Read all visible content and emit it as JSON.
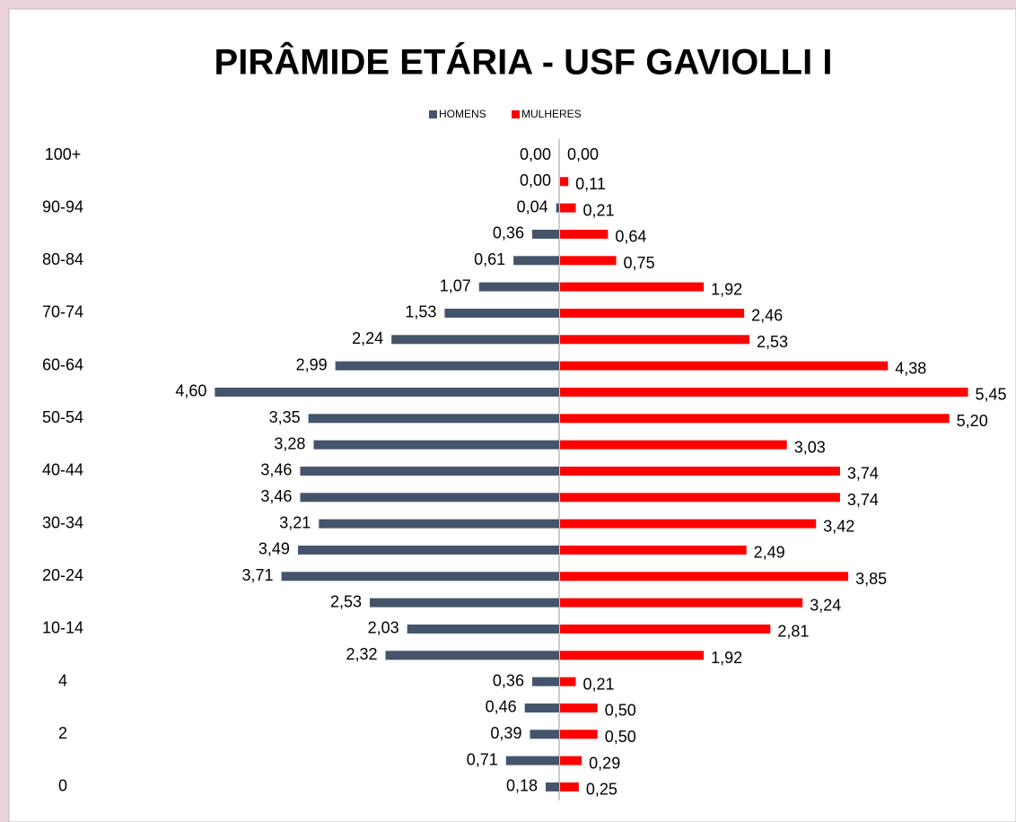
{
  "chart_data": {
    "type": "pyramid",
    "title": "PIRÂMIDE ETÁRIA - USF GAVIOLLI I",
    "categories": [
      "100+",
      null,
      "90-94",
      null,
      "80-84",
      null,
      "70-74",
      null,
      "60-64",
      null,
      "50-54",
      null,
      "40-44",
      null,
      "30-34",
      null,
      "20-24",
      null,
      "10-14",
      null,
      "4",
      null,
      "2",
      null,
      "0"
    ],
    "series": [
      {
        "name": "HOMENS",
        "color": "#44546a",
        "values": [
          0.0,
          0.0,
          0.04,
          0.36,
          0.61,
          1.07,
          1.53,
          2.24,
          2.99,
          4.6,
          3.35,
          3.28,
          3.46,
          3.46,
          3.21,
          3.49,
          3.71,
          2.53,
          2.03,
          2.32,
          0.36,
          0.46,
          0.39,
          0.71,
          0.18
        ],
        "value_labels": [
          "0,00",
          "0,00",
          "0,04",
          "0,36",
          "0,61",
          "1,07",
          "1,53",
          "2,24",
          "2,99",
          "4,60",
          "3,35",
          "3,28",
          "3,46",
          "3,46",
          "3,21",
          "3,49",
          "3,71",
          "2,53",
          "2,03",
          "2,32",
          "0,36",
          "0,46",
          "0,39",
          "0,71",
          "0,18"
        ]
      },
      {
        "name": "MULHERES",
        "color": "#ff0000",
        "values": [
          0.0,
          0.11,
          0.21,
          0.64,
          0.75,
          1.92,
          2.46,
          2.53,
          4.38,
          5.45,
          5.2,
          3.03,
          3.74,
          3.74,
          3.42,
          2.49,
          3.85,
          3.24,
          2.81,
          1.92,
          0.21,
          0.5,
          0.5,
          0.29,
          0.25
        ],
        "value_labels": [
          "0,00",
          "0,11",
          "0,21",
          "0,64",
          "0,75",
          "1,92",
          "2,46",
          "2,53",
          "4,38",
          "5,45",
          "5,20",
          "3,03",
          "3,74",
          "3,74",
          "3,42",
          "2,49",
          "3,85",
          "3,24",
          "2,81",
          "1,92",
          "0,21",
          "0,50",
          "0,50",
          "0,29",
          "0,25"
        ]
      }
    ]
  }
}
